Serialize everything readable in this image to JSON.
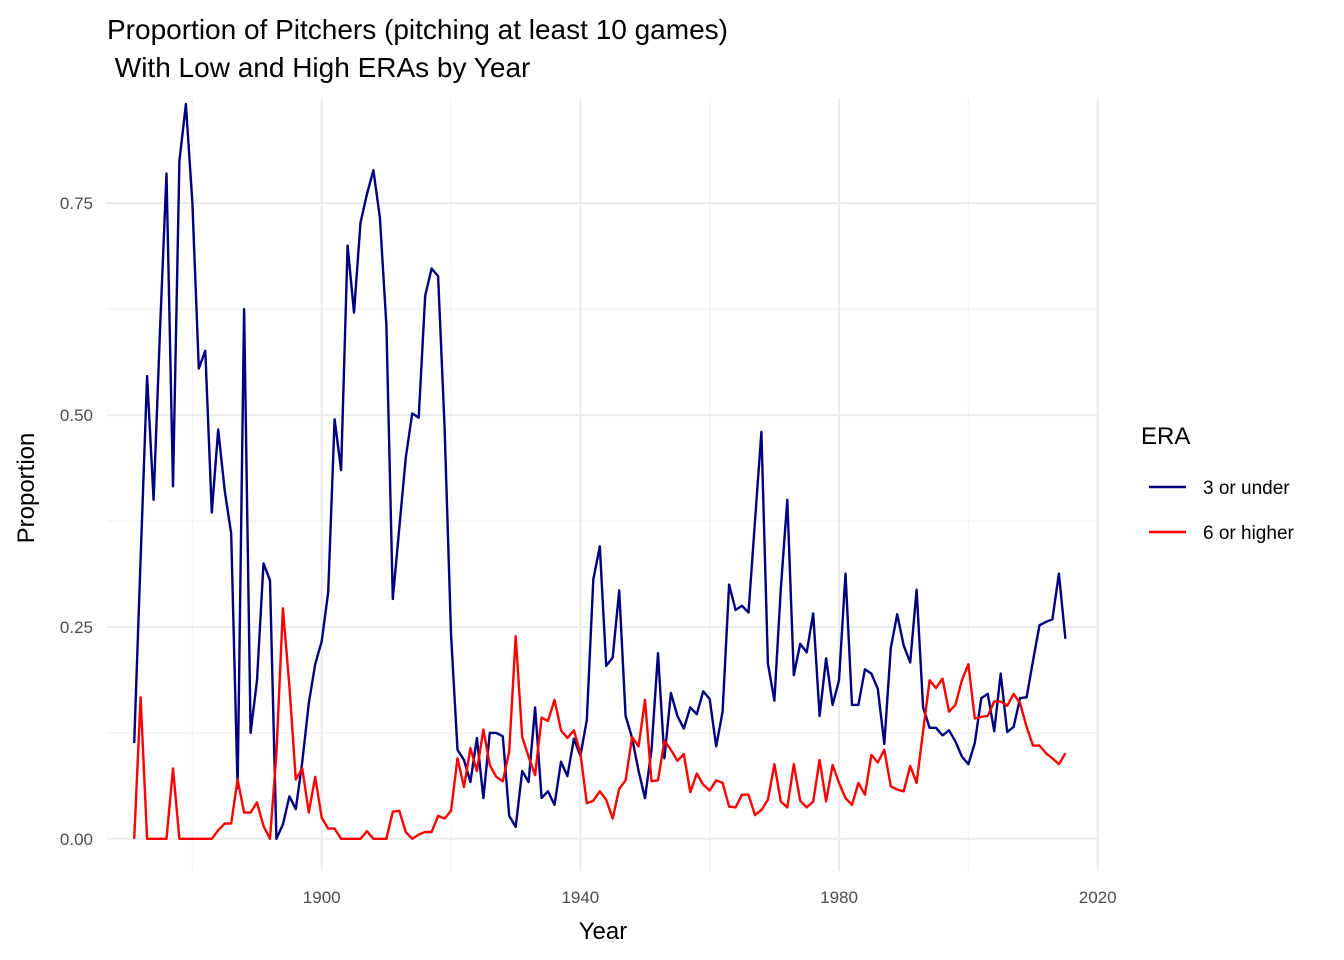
{
  "chart_data": {
    "type": "line",
    "title_lines": [
      "Proportion of Pitchers (pitching at least 10 games)",
      " With Low and High ERAs by Year"
    ],
    "xlabel": "Year",
    "ylabel": "Proportion",
    "xlim": [
      1866.8,
      2020.2
    ],
    "ylim": [
      -0.038,
      0.873
    ],
    "x_ticks": [
      1900,
      1940,
      1980,
      2020
    ],
    "y_ticks": [
      0.0,
      0.25,
      0.5,
      0.75
    ],
    "x_tick_labels": [
      "1900",
      "1940",
      "1980",
      "2020"
    ],
    "y_tick_labels": [
      "0.00",
      "0.25",
      "0.50",
      "0.75"
    ],
    "grid": true,
    "legend": {
      "title": "ERA",
      "position": "right"
    },
    "series": [
      {
        "name": "3 or under",
        "color": "#000080",
        "x": [
          1871,
          1872,
          1873,
          1874,
          1875,
          1876,
          1877,
          1878,
          1879,
          1880,
          1881,
          1882,
          1883,
          1884,
          1885,
          1886,
          1887,
          1888,
          1889,
          1890,
          1891,
          1892,
          1893,
          1894,
          1895,
          1896,
          1897,
          1898,
          1899,
          1900,
          1901,
          1902,
          1903,
          1904,
          1905,
          1906,
          1907,
          1908,
          1909,
          1910,
          1911,
          1912,
          1913,
          1914,
          1915,
          1916,
          1917,
          1918,
          1919,
          1920,
          1921,
          1922,
          1923,
          1924,
          1925,
          1926,
          1927,
          1928,
          1929,
          1930,
          1931,
          1932,
          1933,
          1934,
          1935,
          1936,
          1937,
          1938,
          1939,
          1940,
          1941,
          1942,
          1943,
          1944,
          1945,
          1946,
          1947,
          1948,
          1949,
          1950,
          1951,
          1952,
          1953,
          1954,
          1955,
          1956,
          1957,
          1958,
          1959,
          1960,
          1961,
          1962,
          1963,
          1964,
          1965,
          1966,
          1967,
          1968,
          1969,
          1970,
          1971,
          1972,
          1973,
          1974,
          1975,
          1976,
          1977,
          1978,
          1979,
          1980,
          1981,
          1982,
          1983,
          1984,
          1985,
          1986,
          1987,
          1988,
          1989,
          1990,
          1991,
          1992,
          1993,
          1994,
          1995,
          1996,
          1997,
          1998,
          1999,
          2000,
          2001,
          2002,
          2003,
          2004,
          2005,
          2006,
          2007,
          2008,
          2009,
          2010,
          2011,
          2012,
          2013,
          2014,
          2015
        ],
        "values": [
          0.113,
          0.33,
          0.546,
          0.4,
          0.6,
          0.785,
          0.416,
          0.8,
          0.867,
          0.75,
          0.555,
          0.576,
          0.385,
          0.483,
          0.411,
          0.36,
          0.06,
          0.625,
          0.125,
          0.187,
          0.325,
          0.305,
          0.0,
          0.017,
          0.05,
          0.035,
          0.091,
          0.16,
          0.206,
          0.233,
          0.291,
          0.495,
          0.435,
          0.7,
          0.621,
          0.727,
          0.761,
          0.789,
          0.733,
          0.606,
          0.283,
          0.367,
          0.45,
          0.502,
          0.497,
          0.641,
          0.673,
          0.664,
          0.485,
          0.242,
          0.105,
          0.093,
          0.067,
          0.119,
          0.048,
          0.125,
          0.125,
          0.121,
          0.027,
          0.014,
          0.08,
          0.067,
          0.155,
          0.048,
          0.056,
          0.04,
          0.091,
          0.074,
          0.118,
          0.098,
          0.14,
          0.306,
          0.345,
          0.204,
          0.214,
          0.293,
          0.145,
          0.119,
          0.08,
          0.048,
          0.105,
          0.219,
          0.095,
          0.172,
          0.145,
          0.13,
          0.155,
          0.147,
          0.174,
          0.165,
          0.109,
          0.15,
          0.3,
          0.27,
          0.275,
          0.267,
          0.375,
          0.48,
          0.207,
          0.163,
          0.295,
          0.4,
          0.193,
          0.23,
          0.22,
          0.266,
          0.145,
          0.213,
          0.158,
          0.187,
          0.313,
          0.158,
          0.158,
          0.2,
          0.195,
          0.177,
          0.112,
          0.225,
          0.265,
          0.228,
          0.208,
          0.294,
          0.155,
          0.131,
          0.131,
          0.122,
          0.128,
          0.115,
          0.097,
          0.088,
          0.113,
          0.166,
          0.171,
          0.127,
          0.195,
          0.126,
          0.132,
          0.166,
          0.167,
          0.21,
          0.252,
          0.256,
          0.259,
          0.313,
          0.236
        ]
      },
      {
        "name": "6 or higher",
        "color": "#ff0000",
        "x": [
          1871,
          1872,
          1873,
          1874,
          1875,
          1876,
          1877,
          1878,
          1879,
          1880,
          1881,
          1882,
          1883,
          1884,
          1885,
          1886,
          1887,
          1888,
          1889,
          1890,
          1891,
          1892,
          1893,
          1894,
          1895,
          1896,
          1897,
          1898,
          1899,
          1900,
          1901,
          1902,
          1903,
          1904,
          1905,
          1906,
          1907,
          1908,
          1909,
          1910,
          1911,
          1912,
          1913,
          1914,
          1915,
          1916,
          1917,
          1918,
          1919,
          1920,
          1921,
          1922,
          1923,
          1924,
          1925,
          1926,
          1927,
          1928,
          1929,
          1930,
          1931,
          1932,
          1933,
          1934,
          1935,
          1936,
          1937,
          1938,
          1939,
          1940,
          1941,
          1942,
          1943,
          1944,
          1945,
          1946,
          1947,
          1948,
          1949,
          1950,
          1951,
          1952,
          1953,
          1954,
          1955,
          1956,
          1957,
          1958,
          1959,
          1960,
          1961,
          1962,
          1963,
          1964,
          1965,
          1966,
          1967,
          1968,
          1969,
          1970,
          1971,
          1972,
          1973,
          1974,
          1975,
          1976,
          1977,
          1978,
          1979,
          1980,
          1981,
          1982,
          1983,
          1984,
          1985,
          1986,
          1987,
          1988,
          1989,
          1990,
          1991,
          1992,
          1993,
          1994,
          1995,
          1996,
          1997,
          1998,
          1999,
          2000,
          2001,
          2002,
          2003,
          2004,
          2005,
          2006,
          2007,
          2008,
          2009,
          2010,
          2011,
          2012,
          2013,
          2014,
          2015
        ],
        "values": [
          0.0,
          0.167,
          0.0,
          0.0,
          0.0,
          0.0,
          0.083,
          0.0,
          0.0,
          0.0,
          0.0,
          0.0,
          0.0,
          0.01,
          0.018,
          0.018,
          0.07,
          0.031,
          0.031,
          0.043,
          0.015,
          0.0,
          0.1,
          0.272,
          0.18,
          0.07,
          0.083,
          0.031,
          0.073,
          0.025,
          0.012,
          0.012,
          0.0,
          0.0,
          0.0,
          0.0,
          0.009,
          0.0,
          0.0,
          0.0,
          0.032,
          0.033,
          0.008,
          0.0,
          0.005,
          0.008,
          0.008,
          0.027,
          0.024,
          0.033,
          0.095,
          0.061,
          0.107,
          0.08,
          0.129,
          0.087,
          0.073,
          0.068,
          0.103,
          0.239,
          0.12,
          0.097,
          0.075,
          0.143,
          0.139,
          0.164,
          0.128,
          0.119,
          0.128,
          0.101,
          0.042,
          0.045,
          0.056,
          0.046,
          0.024,
          0.059,
          0.069,
          0.12,
          0.109,
          0.164,
          0.068,
          0.069,
          0.116,
          0.105,
          0.092,
          0.1,
          0.055,
          0.077,
          0.064,
          0.057,
          0.069,
          0.066,
          0.038,
          0.037,
          0.052,
          0.052,
          0.028,
          0.034,
          0.046,
          0.088,
          0.044,
          0.037,
          0.088,
          0.045,
          0.037,
          0.044,
          0.093,
          0.044,
          0.087,
          0.066,
          0.048,
          0.04,
          0.066,
          0.052,
          0.099,
          0.09,
          0.105,
          0.062,
          0.058,
          0.056,
          0.086,
          0.066,
          0.127,
          0.187,
          0.178,
          0.189,
          0.15,
          0.158,
          0.187,
          0.206,
          0.142,
          0.144,
          0.145,
          0.162,
          0.162,
          0.157,
          0.171,
          0.16,
          0.132,
          0.11,
          0.11,
          0.101,
          0.095,
          0.088,
          0.101
        ]
      }
    ]
  }
}
